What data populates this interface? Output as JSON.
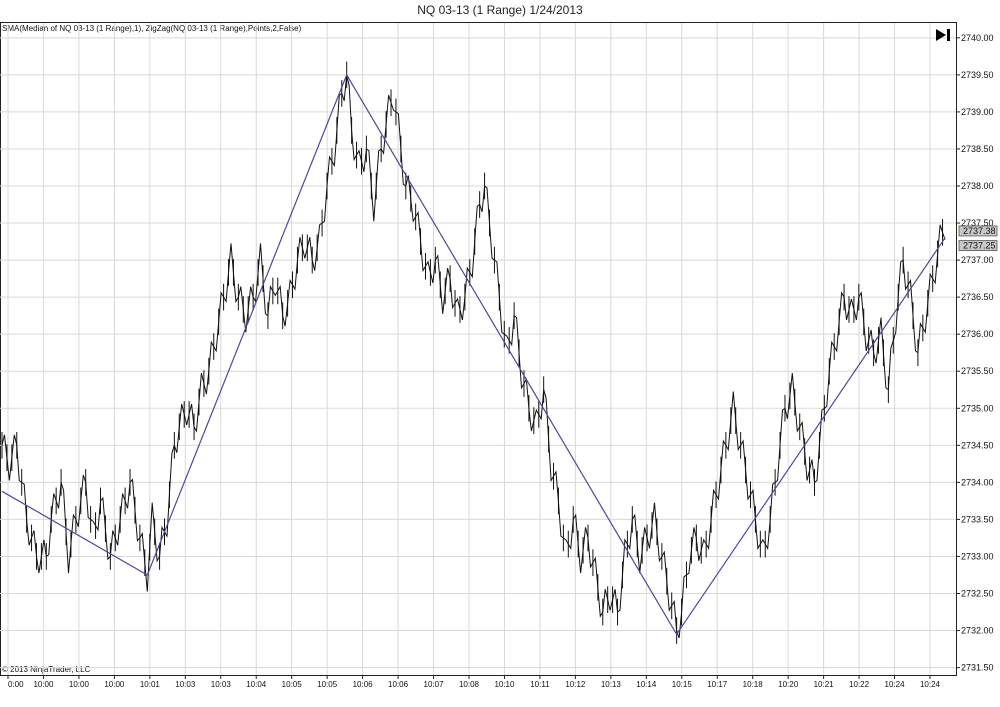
{
  "chart_title": "NQ 03-13 (1 Range)  1/24/2013",
  "indicator_label": "SMA(Median of NQ 03-13 (1 Range),1), ZigZag(NQ 03-13 (1 Range),Points,2,False)",
  "copyright": "© 2013 NinjaTrader, LLC",
  "icons": {
    "scroll_to_end": "skip-to-end-icon"
  },
  "colors": {
    "price": "#111111",
    "zigzag": "#4a4a9a",
    "grid": "#d8d8d8",
    "tag_bg": "#c8c8c8"
  },
  "chart_data": {
    "type": "line",
    "title": "NQ 03-13 (1 Range)  1/24/2013",
    "ylim": [
      2731.4,
      2740.2
    ],
    "grid": true,
    "y_ticks": [
      "2740.00",
      "2739.50",
      "2739.00",
      "2738.50",
      "2738.00",
      "2737.50",
      "2737.00",
      "2736.50",
      "2736.00",
      "2735.50",
      "2735.00",
      "2734.50",
      "2734.00",
      "2733.50",
      "2733.00",
      "2732.50",
      "2732.00",
      "2731.50"
    ],
    "x_ticks": [
      "0:00",
      "10:00",
      "10:00",
      "10:00",
      "10:01",
      "10:03",
      "10:03",
      "10:04",
      "10:05",
      "10:05",
      "10:06",
      "10:06",
      "10:07",
      "10:08",
      "10:10",
      "10:11",
      "10:12",
      "10:13",
      "10:14",
      "10:15",
      "10:17",
      "10:18",
      "10:20",
      "10:21",
      "10:22",
      "10:24",
      "10:24"
    ],
    "last_values": [
      "2737.38",
      "2737.25"
    ],
    "series": [
      {
        "name": "SMA(Median of NQ 03-13 (1 Range),1)",
        "anchors": [
          [
            0,
            2734.5
          ],
          [
            3,
            2734.25
          ],
          [
            6,
            2734.5
          ],
          [
            10,
            2733.5
          ],
          [
            14,
            2733.0
          ],
          [
            18,
            2733.0
          ],
          [
            20,
            2733.5
          ],
          [
            24,
            2734.0
          ],
          [
            27,
            2733.0
          ],
          [
            30,
            2733.5
          ],
          [
            34,
            2734.0
          ],
          [
            37,
            2733.25
          ],
          [
            40,
            2733.75
          ],
          [
            44,
            2733.0
          ],
          [
            48,
            2733.5
          ],
          [
            52,
            2734.0
          ],
          [
            56,
            2733.25
          ],
          [
            59,
            2732.75
          ],
          [
            61,
            2733.5
          ],
          [
            64,
            2733.0
          ],
          [
            67,
            2733.5
          ],
          [
            70,
            2734.5
          ],
          [
            72,
            2734.75
          ],
          [
            75,
            2735.0
          ],
          [
            78,
            2734.75
          ],
          [
            81,
            2735.25
          ],
          [
            84,
            2735.5
          ],
          [
            87,
            2736.0
          ],
          [
            90,
            2736.5
          ],
          [
            93,
            2737.0
          ],
          [
            96,
            2736.5
          ],
          [
            99,
            2736.25
          ],
          [
            102,
            2736.5
          ],
          [
            105,
            2737.0
          ],
          [
            108,
            2736.25
          ],
          [
            111,
            2736.75
          ],
          [
            114,
            2736.25
          ],
          [
            117,
            2736.5
          ],
          [
            120,
            2737.0
          ],
          [
            123,
            2737.25
          ],
          [
            126,
            2737.0
          ],
          [
            129,
            2737.25
          ],
          [
            132,
            2738.0
          ],
          [
            135,
            2738.5
          ],
          [
            138,
            2739.25
          ],
          [
            140,
            2739.5
          ],
          [
            142,
            2738.75
          ],
          [
            145,
            2738.25
          ],
          [
            148,
            2738.5
          ],
          [
            151,
            2737.75
          ],
          [
            154,
            2738.5
          ],
          [
            157,
            2739.0
          ],
          [
            159,
            2739.25
          ],
          [
            161,
            2738.75
          ],
          [
            164,
            2738.0
          ],
          [
            167,
            2737.75
          ],
          [
            170,
            2737.25
          ],
          [
            173,
            2736.75
          ],
          [
            176,
            2737.0
          ],
          [
            179,
            2736.5
          ],
          [
            182,
            2736.75
          ],
          [
            185,
            2736.25
          ],
          [
            188,
            2736.5
          ],
          [
            191,
            2737.0
          ],
          [
            194,
            2737.75
          ],
          [
            196,
            2738.0
          ],
          [
            199,
            2737.25
          ],
          [
            202,
            2736.5
          ],
          [
            205,
            2735.75
          ],
          [
            208,
            2736.25
          ],
          [
            211,
            2735.5
          ],
          [
            214,
            2735.0
          ],
          [
            217,
            2734.75
          ],
          [
            220,
            2735.25
          ],
          [
            223,
            2734.25
          ],
          [
            226,
            2733.75
          ],
          [
            229,
            2733.0
          ],
          [
            232,
            2733.5
          ],
          [
            235,
            2733.0
          ],
          [
            238,
            2733.25
          ],
          [
            241,
            2732.75
          ],
          [
            244,
            2732.25
          ],
          [
            247,
            2732.5
          ],
          [
            250,
            2732.25
          ],
          [
            253,
            2733.0
          ],
          [
            256,
            2733.5
          ],
          [
            259,
            2733.0
          ],
          [
            262,
            2733.25
          ],
          [
            265,
            2733.5
          ],
          [
            268,
            2733.0
          ],
          [
            271,
            2732.5
          ],
          [
            274,
            2732.0
          ],
          [
            276,
            2732.25
          ],
          [
            279,
            2733.0
          ],
          [
            282,
            2733.25
          ],
          [
            285,
            2733.0
          ],
          [
            288,
            2733.5
          ],
          [
            291,
            2734.0
          ],
          [
            294,
            2734.5
          ],
          [
            297,
            2735.0
          ],
          [
            300,
            2734.5
          ],
          [
            303,
            2734.0
          ],
          [
            306,
            2733.5
          ],
          [
            309,
            2733.0
          ],
          [
            312,
            2733.5
          ],
          [
            315,
            2734.25
          ],
          [
            318,
            2735.0
          ],
          [
            321,
            2735.25
          ],
          [
            324,
            2734.75
          ],
          [
            327,
            2734.25
          ],
          [
            330,
            2734.0
          ],
          [
            333,
            2734.75
          ],
          [
            336,
            2735.5
          ],
          [
            339,
            2736.0
          ],
          [
            342,
            2736.5
          ],
          [
            345,
            2736.25
          ],
          [
            348,
            2736.5
          ],
          [
            351,
            2736.0
          ],
          [
            354,
            2735.75
          ],
          [
            357,
            2736.0
          ],
          [
            360,
            2735.25
          ],
          [
            363,
            2736.25
          ],
          [
            366,
            2737.0
          ],
          [
            369,
            2736.5
          ],
          [
            372,
            2735.75
          ],
          [
            375,
            2736.25
          ],
          [
            378,
            2736.75
          ],
          [
            381,
            2737.25
          ],
          [
            383,
            2737.5
          ]
        ]
      },
      {
        "name": "ZigZag(NQ 03-13 (1 Range),Points,2,False)",
        "points": [
          [
            0,
            2733.88
          ],
          [
            59,
            2732.75
          ],
          [
            140,
            2739.5
          ],
          [
            274,
            2731.95
          ],
          [
            383,
            2737.3
          ]
        ]
      }
    ]
  }
}
